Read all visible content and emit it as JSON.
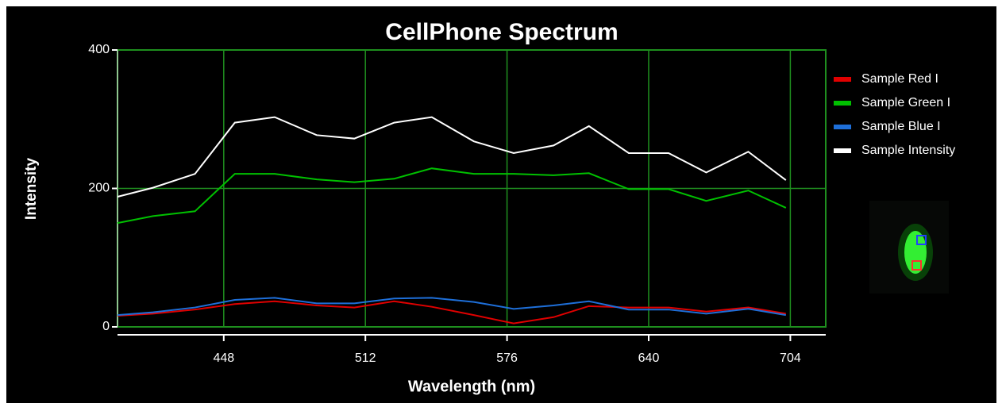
{
  "chart_data": {
    "type": "line",
    "title": "CellPhone Spectrum",
    "x_label": "Wavelength (nm)",
    "y_label": "Intensity",
    "x": [
      400,
      416,
      435,
      453,
      471,
      490,
      507,
      525,
      542,
      561,
      579,
      597,
      613,
      631,
      649,
      666,
      685,
      702
    ],
    "series": [
      {
        "name": "Sample Red I",
        "color": "#e00000",
        "values": [
          16,
          19,
          25,
          33,
          37,
          31,
          28,
          37,
          29,
          17,
          5,
          14,
          30,
          28,
          28,
          22,
          28,
          19
        ]
      },
      {
        "name": "Sample Green I",
        "color": "#00c000",
        "values": [
          150,
          160,
          167,
          221,
          221,
          213,
          209,
          214,
          229,
          221,
          221,
          219,
          222,
          199,
          199,
          182,
          197,
          172
        ]
      },
      {
        "name": "Sample Blue I",
        "color": "#1e6fd9",
        "values": [
          17,
          21,
          28,
          39,
          42,
          34,
          34,
          41,
          42,
          36,
          26,
          31,
          37,
          25,
          25,
          19,
          26,
          17
        ]
      },
      {
        "name": "Sample Intensity",
        "color": "#ffffff",
        "values": [
          188,
          201,
          221,
          295,
          303,
          277,
          272,
          295,
          303,
          268,
          251,
          262,
          290,
          251,
          251,
          223,
          253,
          212
        ]
      }
    ],
    "xlim": [
      400,
      720
    ],
    "xticks": [
      448,
      512,
      576,
      640,
      704
    ],
    "ylim": [
      0,
      400
    ],
    "yticks": [
      0,
      200,
      400
    ],
    "grid": true,
    "grid_color": "#1f8f1f",
    "legend": "right"
  }
}
